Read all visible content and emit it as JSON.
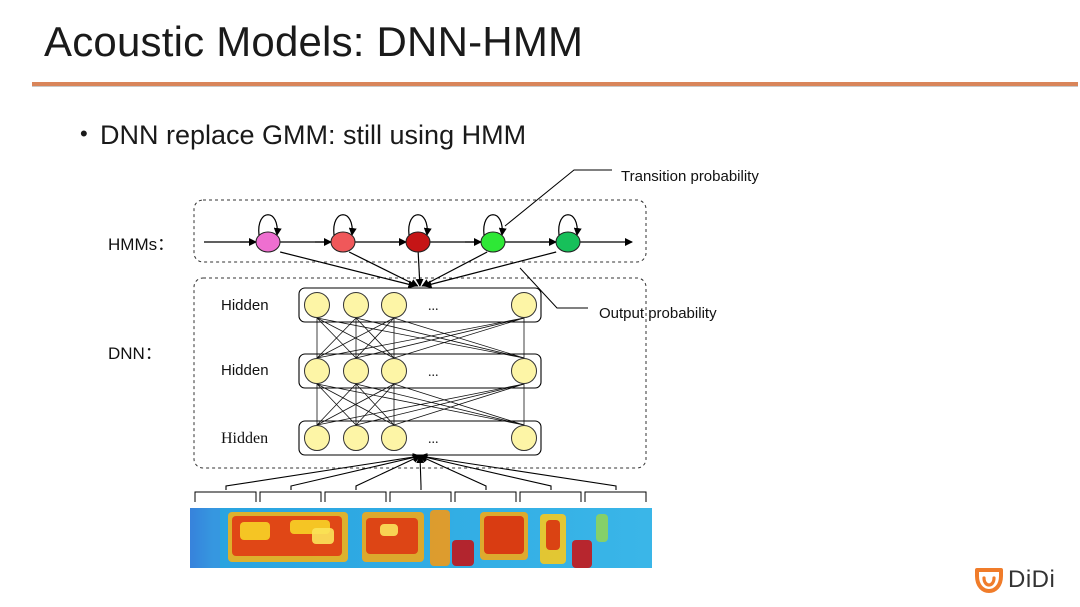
{
  "slide": {
    "title": "Acoustic Models: DNN-HMM",
    "bullet": "DNN replace GMM: still using HMM",
    "accent_color": "#d9855a"
  },
  "diagram": {
    "hmm_label": "HMMs：",
    "dnn_label": "DNN：",
    "transition_label": "Transition probability",
    "output_label": "Output probability",
    "layers": [
      "Hidden",
      "Hidden",
      "Hidden"
    ],
    "ellipsis": "...",
    "hmm_state_colors": [
      "#ee6fd0",
      "#f0585a",
      "#c51516",
      "#2ee836",
      "#17c05a"
    ],
    "node_color": "#fdf5a6"
  },
  "logo": {
    "text": "DiDi",
    "icon": "didi-logo-icon",
    "color": "#f07c2a"
  }
}
